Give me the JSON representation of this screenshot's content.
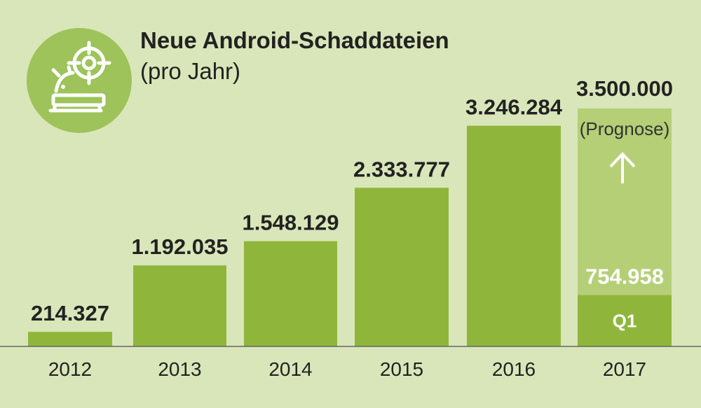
{
  "header": {
    "title": "Neue Android-Schaddateien",
    "subtitle": "(pro Jahr)",
    "icon": "android-target-icon"
  },
  "colors": {
    "background": "#d9e6b9",
    "bar": "#8fb63b",
    "forecast_bar": "#b5cf77",
    "icon_circle": "#9dc35a",
    "axis": "#666666"
  },
  "chart_data": {
    "type": "bar",
    "categories": [
      "2012",
      "2013",
      "2014",
      "2015",
      "2016",
      "2017"
    ],
    "values": [
      214327,
      1192035,
      1548129,
      2333777,
      3246284,
      754958
    ],
    "value_labels": [
      "214.327",
      "1.192.035",
      "1.548.129",
      "2.333.777",
      "3.246.284",
      "754.958"
    ],
    "forecast": {
      "category": "2017",
      "value": 3500000,
      "label": "3.500.000",
      "note": "(Prognose)",
      "actual_label": "Q1"
    },
    "title": "Neue Android-Schaddateien",
    "subtitle": "(pro Jahr)",
    "xlabel": "",
    "ylabel": "",
    "ylim": [
      0,
      3500000
    ],
    "grid": false,
    "legend": "none"
  }
}
